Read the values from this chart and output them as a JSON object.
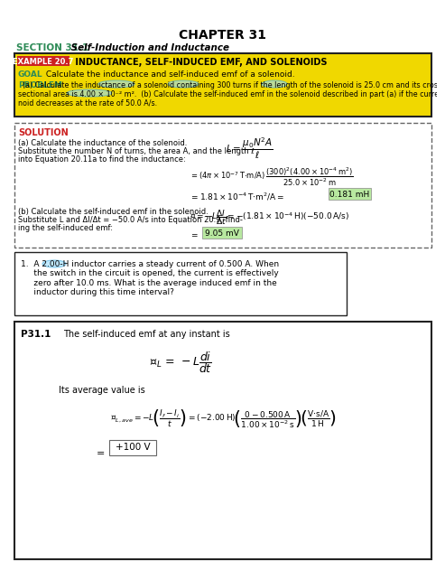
{
  "title": "CHAPTER 31",
  "section_color": "#2e8b57",
  "section_label": "SECTION 31.1",
  "section_title": " Self-Induction and Inductance",
  "ex_label": "EXAMPLE 20.7",
  "ex_label_bg": "#cc2222",
  "ex_title": " INDUCTANCE, SELF-INDUCED EMF, AND SOLENOIDS",
  "ex_bg": "#f0d800",
  "goal_color": "#2e8b57",
  "sol_color": "#cc2222",
  "highlight_green": "#b8e8a0",
  "highlight_cyan_edge": "#44aadd",
  "highlight_cyan_face": "#99ddff",
  "bg": "#ffffff",
  "border_dark": "#222222",
  "border_med": "#666666"
}
